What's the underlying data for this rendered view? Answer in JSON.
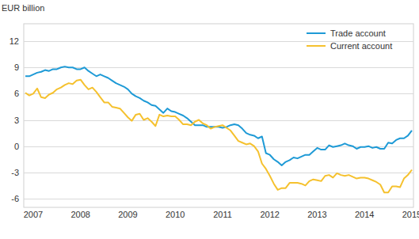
{
  "chart_data": {
    "type": "line",
    "y_label": "EUR billion",
    "categories": [
      null,
      null,
      "2007",
      null,
      null,
      null,
      null,
      null,
      null,
      null,
      null,
      null,
      null,
      null,
      "2008",
      null,
      null,
      null,
      null,
      null,
      null,
      null,
      null,
      null,
      null,
      null,
      "2009",
      null,
      null,
      null,
      null,
      null,
      null,
      null,
      null,
      null,
      null,
      null,
      "2010",
      null,
      null,
      null,
      null,
      null,
      null,
      null,
      null,
      null,
      null,
      null,
      "2011",
      null,
      null,
      null,
      null,
      null,
      null,
      null,
      null,
      null,
      null,
      null,
      "2012",
      null,
      null,
      null,
      null,
      null,
      null,
      null,
      null,
      null,
      null,
      null,
      "2013",
      null,
      null,
      null,
      null,
      null,
      null,
      null,
      null,
      null,
      null,
      null,
      "2014",
      null,
      null,
      null,
      null,
      null,
      null,
      null,
      null,
      null,
      null,
      null,
      "2015"
    ],
    "series": [
      {
        "name": "Trade account",
        "color": "#1e9ad6",
        "values": [
          8.0,
          8.0,
          8.2,
          8.4,
          8.5,
          8.7,
          8.6,
          8.8,
          8.8,
          9.0,
          9.1,
          9.0,
          9.0,
          8.8,
          8.8,
          9.0,
          8.6,
          8.3,
          8.0,
          8.2,
          8.0,
          7.8,
          7.5,
          7.2,
          7.0,
          6.8,
          6.5,
          6.0,
          5.7,
          5.5,
          5.2,
          5.0,
          4.7,
          4.6,
          4.2,
          3.8,
          4.3,
          4.0,
          3.9,
          3.7,
          3.5,
          3.2,
          2.8,
          2.4,
          2.4,
          2.4,
          2.2,
          2.2,
          2.2,
          2.2,
          2.1,
          2.2,
          2.4,
          2.5,
          2.4,
          2.0,
          1.5,
          1.3,
          1.2,
          0.9,
          1.1,
          -0.8,
          -1.0,
          -1.5,
          -1.8,
          -2.2,
          -1.8,
          -1.6,
          -1.3,
          -1.4,
          -1.2,
          -1.0,
          -1.0,
          -0.6,
          -0.2,
          -0.4,
          -0.4,
          0.1,
          -0.1,
          0.0,
          0.1,
          0.3,
          0.1,
          0.0,
          -0.3,
          -0.1,
          -0.1,
          0.0,
          -0.2,
          -0.1,
          -0.3,
          -0.3,
          0.4,
          0.3,
          0.7,
          0.9,
          0.9,
          1.2,
          1.8
        ]
      },
      {
        "name": "Current account",
        "color": "#f5c12e",
        "values": [
          6.1,
          5.8,
          6.0,
          6.6,
          5.6,
          5.5,
          5.9,
          6.1,
          6.5,
          6.7,
          7.0,
          7.2,
          7.1,
          7.5,
          7.6,
          7.0,
          6.5,
          6.7,
          6.2,
          5.6,
          5.0,
          5.0,
          4.5,
          4.4,
          4.3,
          3.8,
          3.3,
          2.9,
          3.6,
          3.7,
          3.0,
          3.2,
          2.8,
          2.3,
          3.6,
          3.4,
          3.5,
          3.4,
          3.4,
          3.0,
          2.5,
          2.5,
          2.4,
          2.8,
          3.0,
          2.6,
          2.4,
          2.0,
          2.2,
          2.3,
          2.4,
          2.1,
          1.8,
          1.2,
          0.6,
          0.4,
          0.2,
          0.3,
          0.0,
          -0.6,
          -2.0,
          -2.6,
          -3.4,
          -4.3,
          -5.0,
          -4.8,
          -4.8,
          -4.2,
          -4.2,
          -4.2,
          -4.3,
          -4.5,
          -4.0,
          -3.8,
          -3.9,
          -4.0,
          -3.4,
          -3.3,
          -3.6,
          -3.1,
          -3.3,
          -3.4,
          -3.3,
          -3.5,
          -3.7,
          -3.6,
          -3.6,
          -3.7,
          -3.9,
          -4.1,
          -4.4,
          -5.3,
          -5.3,
          -4.6,
          -4.6,
          -4.7,
          -3.7,
          -3.3,
          -2.7
        ]
      }
    ],
    "ylim": [
      -7,
      14
    ],
    "yticks": [
      -6,
      -3,
      0,
      3,
      6,
      9,
      12
    ],
    "grid": true,
    "legend": "upper-right"
  }
}
